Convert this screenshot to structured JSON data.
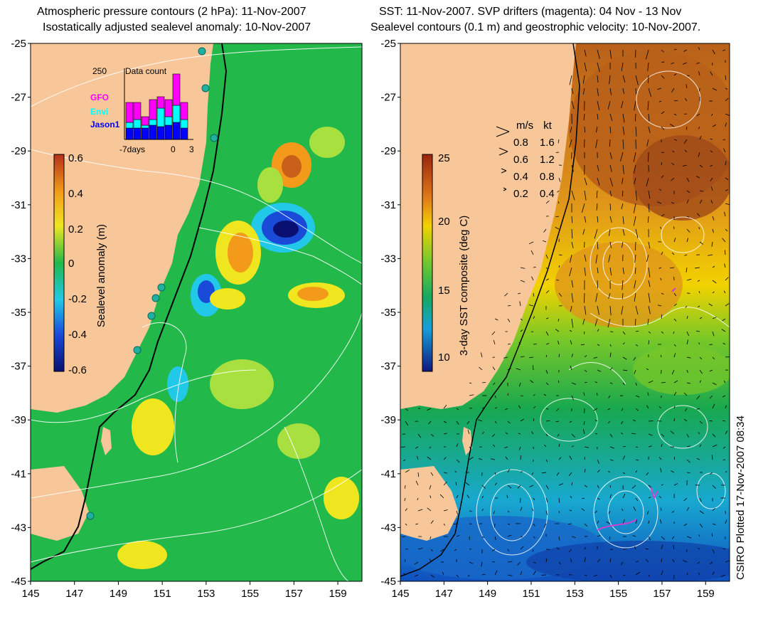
{
  "left_panel": {
    "title_line1": "Atmospheric pressure contours (2 hPa): 11-Nov-2007",
    "title_line2": "Isostatically adjusted sealevel anomaly: 10-Nov-2007",
    "colorbar_label": "Sealevel anomaly (m)",
    "colorbar_ticks": [
      "0.6",
      "0.4",
      "0.2",
      "0",
      "-0.2",
      "-0.4",
      "-0.6"
    ],
    "inset": {
      "count_label": "250",
      "title": "Data count",
      "legend": [
        {
          "name": "GFO",
          "color": "#ff00ff"
        },
        {
          "name": "Envi",
          "color": "#00ffff"
        },
        {
          "name": "Jason1",
          "color": "#0000ff"
        }
      ],
      "x_labels": [
        "-7days",
        "0",
        "3"
      ],
      "bars": [
        {
          "jason": 40,
          "envi": 20,
          "gfo": 70
        },
        {
          "jason": 40,
          "envi": 30,
          "gfo": 60
        },
        {
          "jason": 40,
          "envi": 10,
          "gfo": 30
        },
        {
          "jason": 50,
          "envi": 20,
          "gfo": 70
        },
        {
          "jason": 45,
          "envi": 65,
          "gfo": 40
        },
        {
          "jason": 50,
          "envi": 30,
          "gfo": 60
        },
        {
          "jason": 60,
          "envi": 60,
          "gfo": 110
        },
        {
          "jason": 40,
          "envi": 30,
          "gfo": 60
        }
      ]
    }
  },
  "right_panel": {
    "title_line1": "SST: 11-Nov-2007. SVP drifters (magenta): 04 Nov - 13 Nov",
    "title_line2": "Sealevel contours (0.1 m) and geostrophic velocity: 10-Nov-2007.",
    "colorbar_label": "3-day SST composite (deg C)",
    "colorbar_ticks": [
      "25",
      "20",
      "15",
      "10"
    ],
    "speed_legend": {
      "headers": [
        "m/s",
        "kt"
      ],
      "rows": [
        [
          "0.8",
          "1.6"
        ],
        [
          "0.6",
          "1.2"
        ],
        [
          "0.4",
          "0.8"
        ],
        [
          "0.2",
          "0.4"
        ]
      ]
    }
  },
  "lat_ticks": [
    "-25",
    "-27",
    "-29",
    "-31",
    "-33",
    "-35",
    "-37",
    "-39",
    "-41",
    "-43",
    "-45"
  ],
  "lon_ticks": [
    "145",
    "147",
    "149",
    "151",
    "153",
    "155",
    "157",
    "159"
  ],
  "credit": "CSIRO Plotted 17-Nov-2007 08:34",
  "colors": {
    "land": "#f7c79a",
    "sla_bg": "#22b84a",
    "sst_warm": "#c8701a",
    "sst_mid": "#f2d200",
    "sst_cool": "#1a8fd8"
  }
}
